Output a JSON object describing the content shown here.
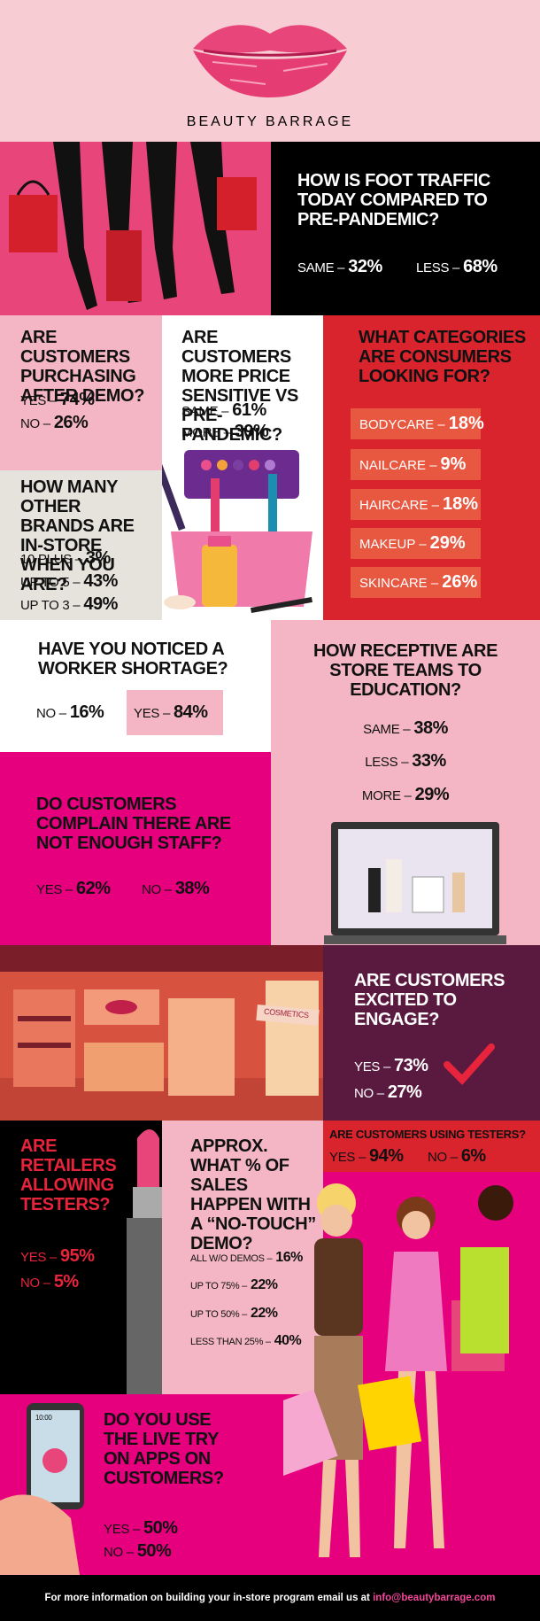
{
  "header": {
    "brand": "BEAUTY BARRAGE"
  },
  "foot_traffic": {
    "question": "HOW IS FOOT TRAFFIC TODAY COMPARED TO PRE-PANDEMIC?",
    "answers": [
      {
        "label": "SAME –",
        "value": "32%"
      },
      {
        "label": "LESS –",
        "value": "68%"
      }
    ]
  },
  "purchasing": {
    "question": "ARE CUSTOMERS PURCHASING AFTER DEMO?",
    "answers": [
      {
        "label": "YES –",
        "value": "74%"
      },
      {
        "label": "NO –",
        "value": "26%"
      }
    ]
  },
  "brands": {
    "question": "HOW MANY OTHER BRANDS ARE IN-STORE WHEN YOU ARE?",
    "answers": [
      {
        "label": "10 PLUS –",
        "value": "3%"
      },
      {
        "label": "UP TO 5 –",
        "value": "43%"
      },
      {
        "label": "UP TO 3 –",
        "value": "49%"
      }
    ]
  },
  "price": {
    "question": "ARE CUSTOMERS MORE PRICE SENSITIVE VS PRE-PANDEMIC?",
    "answers": [
      {
        "label": "SAME –",
        "value": "61%"
      },
      {
        "label": "MORE –",
        "value": "39%"
      }
    ]
  },
  "categories": {
    "question": "WHAT CATEGORIES ARE CONSUMERS LOOKING FOR?",
    "answers": [
      {
        "label": "BODYCARE –",
        "value": "18%"
      },
      {
        "label": "NAILCARE –",
        "value": "9%"
      },
      {
        "label": "HAIRCARE –",
        "value": "18%"
      },
      {
        "label": "MAKEUP –",
        "value": "29%"
      },
      {
        "label": "SKINCARE –",
        "value": "26%"
      }
    ]
  },
  "shortage": {
    "question": "HAVE YOU NOTICED A WORKER SHORTAGE?",
    "answers": [
      {
        "label": "NO –",
        "value": "16%"
      },
      {
        "label": "YES –",
        "value": "84%"
      }
    ]
  },
  "receptive": {
    "question": "HOW RECEPTIVE ARE STORE TEAMS TO EDUCATION?",
    "answers": [
      {
        "label": "SAME –",
        "value": "38%"
      },
      {
        "label": "LESS –",
        "value": "33%"
      },
      {
        "label": "MORE –",
        "value": "29%"
      }
    ]
  },
  "staff": {
    "question": "DO CUSTOMERS COMPLAIN THERE ARE NOT ENOUGH STAFF?",
    "answers": [
      {
        "label": "YES –",
        "value": "62%"
      },
      {
        "label": "NO –",
        "value": "38%"
      }
    ]
  },
  "engage": {
    "question": "ARE CUSTOMERS EXCITED TO ENGAGE?",
    "answers": [
      {
        "label": "YES –",
        "value": "73%"
      },
      {
        "label": "NO –",
        "value": "27%"
      }
    ]
  },
  "store_sign": "COSMETICS",
  "allowing": {
    "question": "ARE RETAILERS ALLOWING TESTERS?",
    "answers": [
      {
        "label": "YES –",
        "value": "95%"
      },
      {
        "label": "NO –",
        "value": "5%"
      }
    ]
  },
  "no_touch": {
    "question": "APPROX. WHAT % OF SALES HAPPEN WITH A “NO-TOUCH” DEMO?",
    "answers": [
      {
        "label": "ALL W/O DEMOS –",
        "value": "16%"
      },
      {
        "label": "UP TO 75% –",
        "value": "22%"
      },
      {
        "label": "UP TO 50% –",
        "value": "22%"
      },
      {
        "label": "LESS THAN 25% –",
        "value": "40%"
      }
    ]
  },
  "using": {
    "question": "ARE CUSTOMERS USING TESTERS?",
    "answers": [
      {
        "label": "YES –",
        "value": "94%"
      },
      {
        "label": "NO –",
        "value": "6%"
      }
    ]
  },
  "phone_time": "10:00",
  "live_try": {
    "question": "DO YOU USE THE LIVE TRY ON APPS ON CUSTOMERS?",
    "answers": [
      {
        "label": "YES –",
        "value": "50%"
      },
      {
        "label": "NO –",
        "value": "50%"
      }
    ]
  },
  "footer": {
    "text": "For more information on building your in-store program email us at",
    "email": "info@beautybarrage.com"
  }
}
